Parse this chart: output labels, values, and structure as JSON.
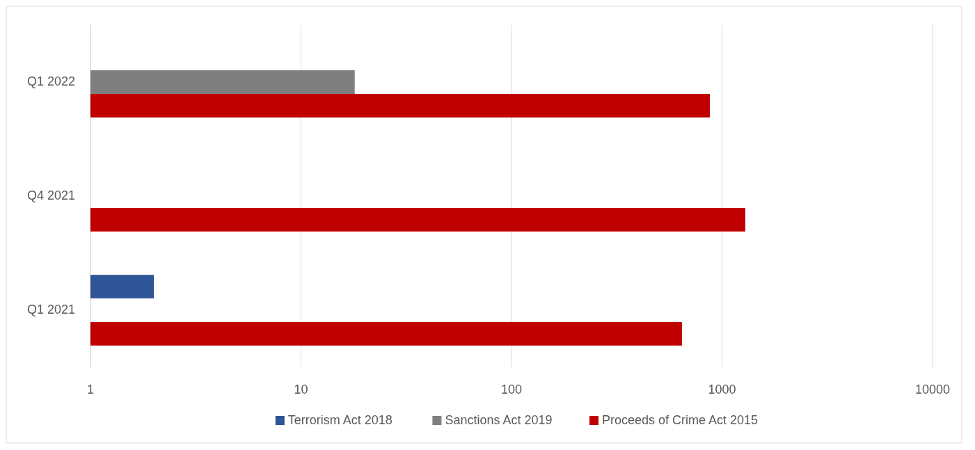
{
  "chart_data": {
    "type": "bar",
    "orientation": "horizontal",
    "log": "x",
    "categories": [
      "Q1 2022",
      "Q4 2021",
      "Q1 2021"
    ],
    "series": [
      {
        "name": "Terrorism Act 2018",
        "color": "#2f5597",
        "values": [
          null,
          null,
          2
        ]
      },
      {
        "name": "Sanctions Act 2019",
        "color": "#7f7f7f",
        "values": [
          18,
          null,
          null
        ]
      },
      {
        "name": "Proceeds of Crime Act 2015",
        "color": "#c00000",
        "values": [
          875,
          1290,
          645
        ]
      }
    ],
    "xlim": [
      1,
      10000
    ],
    "xticks": [
      1,
      10,
      100,
      1000,
      10000
    ],
    "grid": "x",
    "legend": "bottom"
  }
}
